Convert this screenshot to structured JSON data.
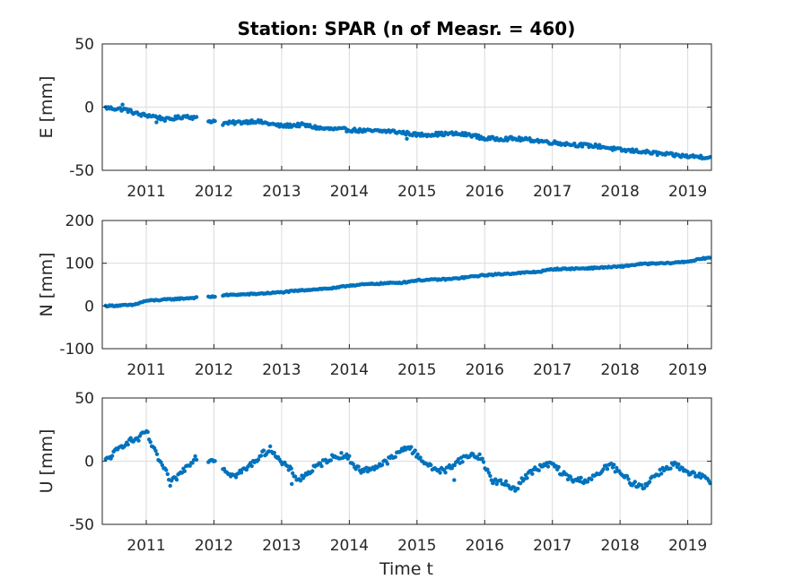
{
  "chart_data": {
    "type": "scatter",
    "title": "Station: SPAR (n of Measr. = 460)",
    "xlabel": "Time t",
    "marker_color": "#0072bd",
    "xlim": [
      2010.35,
      2019.35
    ],
    "xticks": [
      2011,
      2012,
      2013,
      2014,
      2015,
      2016,
      2017,
      2018,
      2019
    ],
    "grid": true,
    "panels": [
      {
        "ylabel": "E [mm]",
        "ylim": [
          -50,
          50
        ],
        "yticks": [
          50,
          0,
          -50
        ],
        "gaps": [
          [
            2011.75,
            2011.9
          ],
          [
            2012.02,
            2012.12
          ]
        ],
        "keypoints": [
          [
            2010.4,
            -0.5
          ],
          [
            2010.7,
            -2
          ],
          [
            2010.9,
            -6
          ],
          [
            2011.1,
            -7
          ],
          [
            2011.3,
            -10
          ],
          [
            2011.6,
            -7
          ],
          [
            2011.9,
            -11
          ],
          [
            2012.02,
            -11
          ],
          [
            2012.12,
            -13
          ],
          [
            2012.4,
            -12
          ],
          [
            2012.6,
            -11
          ],
          [
            2013.0,
            -15
          ],
          [
            2013.3,
            -14
          ],
          [
            2013.6,
            -17
          ],
          [
            2014.0,
            -18
          ],
          [
            2014.3,
            -19
          ],
          [
            2014.6,
            -19
          ],
          [
            2014.9,
            -21
          ],
          [
            2015.0,
            -22
          ],
          [
            2015.5,
            -21
          ],
          [
            2015.8,
            -22
          ],
          [
            2016.0,
            -25
          ],
          [
            2016.4,
            -25
          ],
          [
            2016.7,
            -26
          ],
          [
            2017.0,
            -28
          ],
          [
            2017.4,
            -30
          ],
          [
            2017.7,
            -31
          ],
          [
            2018.0,
            -34
          ],
          [
            2018.3,
            -35
          ],
          [
            2018.6,
            -37
          ],
          [
            2019.0,
            -39
          ],
          [
            2019.3,
            -39.5
          ]
        ],
        "wiggle": 1.4,
        "outliers": [
          [
            2010.65,
            2
          ],
          [
            2014.85,
            -25
          ],
          [
            2011.15,
            -12
          ]
        ]
      },
      {
        "ylabel": "N [mm]",
        "ylim": [
          -100,
          200
        ],
        "yticks": [
          200,
          100,
          0,
          -100
        ],
        "gaps": [
          [
            2011.75,
            2011.9
          ],
          [
            2012.02,
            2012.12
          ]
        ],
        "keypoints": [
          [
            2010.4,
            0
          ],
          [
            2010.8,
            2
          ],
          [
            2011.0,
            12
          ],
          [
            2011.3,
            15
          ],
          [
            2011.6,
            18
          ],
          [
            2012.02,
            22
          ],
          [
            2012.12,
            25
          ],
          [
            2012.6,
            28
          ],
          [
            2013.0,
            32
          ],
          [
            2013.4,
            38
          ],
          [
            2013.8,
            42
          ],
          [
            2014.0,
            48
          ],
          [
            2014.4,
            52
          ],
          [
            2014.8,
            55
          ],
          [
            2015.0,
            60
          ],
          [
            2015.5,
            63
          ],
          [
            2016.0,
            72
          ],
          [
            2016.4,
            76
          ],
          [
            2016.8,
            80
          ],
          [
            2017.0,
            86
          ],
          [
            2017.5,
            88
          ],
          [
            2018.0,
            92
          ],
          [
            2018.3,
            98
          ],
          [
            2018.7,
            100
          ],
          [
            2019.0,
            104
          ],
          [
            2019.3,
            113
          ]
        ],
        "wiggle": 1.6,
        "outliers": []
      },
      {
        "ylabel": "U [mm]",
        "ylim": [
          -50,
          50
        ],
        "yticks": [
          50,
          0,
          -50
        ],
        "gaps": [
          [
            2011.75,
            2011.9
          ],
          [
            2012.02,
            2012.12
          ]
        ],
        "keypoints": [
          [
            2010.35,
            -2
          ],
          [
            2010.5,
            5
          ],
          [
            2010.7,
            15
          ],
          [
            2010.9,
            18
          ],
          [
            2011.0,
            24
          ],
          [
            2011.1,
            10
          ],
          [
            2011.3,
            -10
          ],
          [
            2011.35,
            -18
          ],
          [
            2011.5,
            -10
          ],
          [
            2011.7,
            2
          ],
          [
            2011.8,
            5
          ],
          [
            2011.9,
            0
          ],
          [
            2012.0,
            2
          ],
          [
            2012.12,
            -5
          ],
          [
            2012.3,
            -12
          ],
          [
            2012.5,
            -5
          ],
          [
            2012.7,
            5
          ],
          [
            2012.85,
            10
          ],
          [
            2013.0,
            -2
          ],
          [
            2013.1,
            -5
          ],
          [
            2013.25,
            -15
          ],
          [
            2013.5,
            -5
          ],
          [
            2013.7,
            2
          ],
          [
            2013.9,
            5
          ],
          [
            2014.0,
            2
          ],
          [
            2014.1,
            -5
          ],
          [
            2014.2,
            -8
          ],
          [
            2014.5,
            -2
          ],
          [
            2014.7,
            5
          ],
          [
            2014.85,
            12
          ],
          [
            2015.0,
            5
          ],
          [
            2015.2,
            -5
          ],
          [
            2015.4,
            -8
          ],
          [
            2015.6,
            0
          ],
          [
            2015.8,
            5
          ],
          [
            2015.95,
            3
          ],
          [
            2016.1,
            -15
          ],
          [
            2016.3,
            -18
          ],
          [
            2016.45,
            -22
          ],
          [
            2016.6,
            -12
          ],
          [
            2016.8,
            -5
          ],
          [
            2017.0,
            -2
          ],
          [
            2017.15,
            -10
          ],
          [
            2017.3,
            -15
          ],
          [
            2017.5,
            -15
          ],
          [
            2017.65,
            -12
          ],
          [
            2017.85,
            -2
          ],
          [
            2018.0,
            -10
          ],
          [
            2018.2,
            -18
          ],
          [
            2018.35,
            -20
          ],
          [
            2018.5,
            -12
          ],
          [
            2018.6,
            -8
          ],
          [
            2018.8,
            -2
          ],
          [
            2019.0,
            -10
          ],
          [
            2019.2,
            -12
          ],
          [
            2019.33,
            -17
          ]
        ],
        "wiggle": 2.4,
        "outliers": [
          [
            2013.15,
            -18
          ],
          [
            2015.55,
            -15
          ]
        ]
      }
    ]
  }
}
